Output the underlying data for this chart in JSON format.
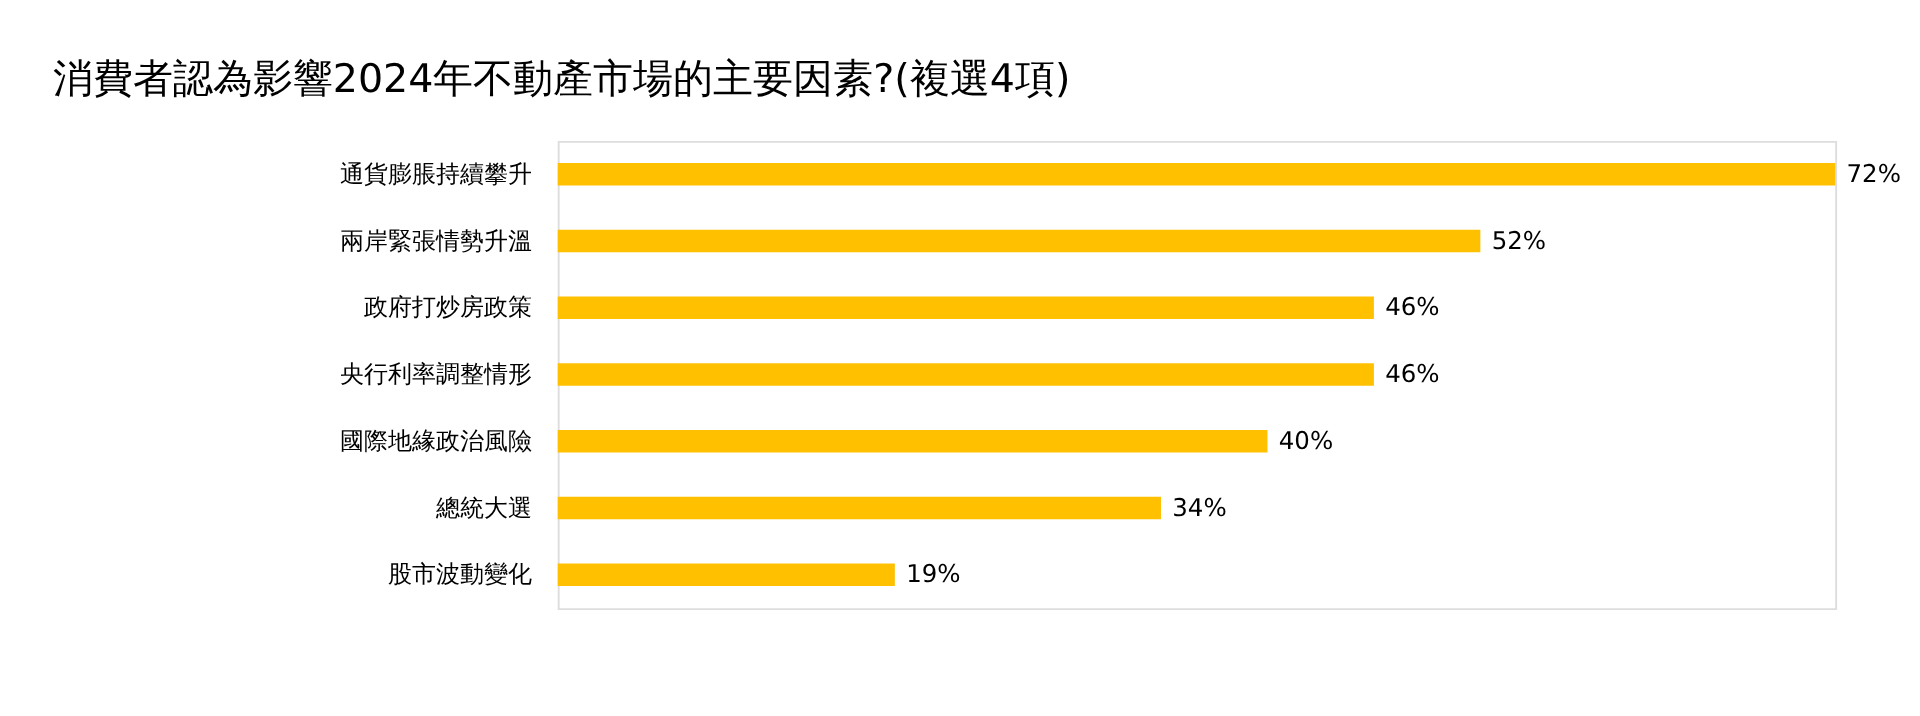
{
  "chart_data": {
    "type": "bar",
    "orientation": "horizontal",
    "title": "消費者認為影響2024年不動產市場的主要因素?(複選4項)",
    "categories": [
      "通貨膨脹持續攀升",
      "兩岸緊張情勢升溫",
      "政府打炒房政策",
      "央行利率調整情形",
      "國際地緣政治風險",
      "總統大選",
      "股市波動變化"
    ],
    "values": [
      72,
      52,
      46,
      46,
      40,
      34,
      19
    ],
    "value_labels": [
      "72%",
      "52%",
      "46%",
      "46%",
      "40%",
      "34%",
      "19%"
    ],
    "color": "#ffc000"
  }
}
